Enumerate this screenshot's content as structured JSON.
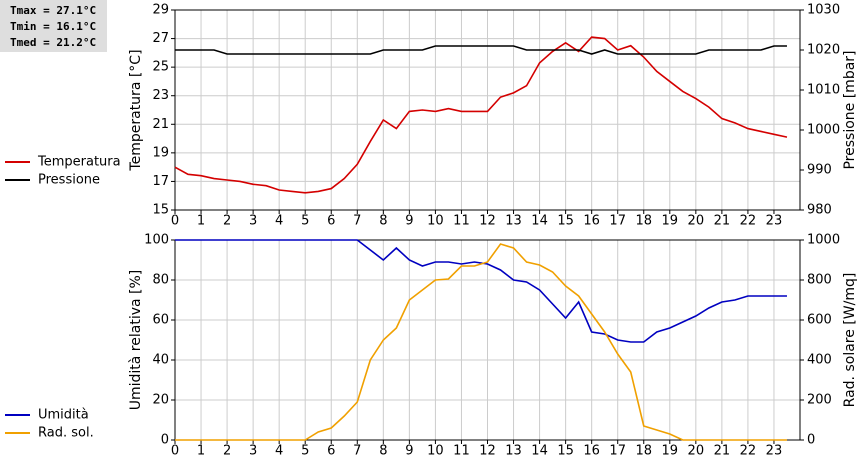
{
  "chart_data": [
    {
      "type": "line",
      "annotations": [
        "Tmax = 27.1°C",
        "Tmin = 16.1°C",
        "Tmed = 21.2°C"
      ],
      "ylabel": "Temperatura [°C]",
      "y2label": "Pressione [mbar]",
      "x": [
        0,
        0.5,
        1,
        1.5,
        2,
        2.5,
        3,
        3.5,
        4,
        4.5,
        5,
        5.5,
        6,
        6.5,
        7,
        7.5,
        8,
        8.5,
        9,
        9.5,
        10,
        10.5,
        11,
        11.5,
        12,
        12.5,
        13,
        13.5,
        14,
        14.5,
        15,
        15.5,
        16,
        16.5,
        17,
        17.5,
        18,
        18.5,
        19,
        19.5,
        20,
        20.5,
        21,
        21.5,
        22,
        22.5,
        23,
        23.5
      ],
      "xlim": [
        0,
        24
      ],
      "xticks": [
        0,
        1,
        2,
        3,
        4,
        5,
        6,
        7,
        8,
        9,
        10,
        11,
        12,
        13,
        14,
        15,
        16,
        17,
        18,
        19,
        20,
        21,
        22,
        23
      ],
      "ylim": [
        15,
        29
      ],
      "yticks": [
        15,
        17,
        19,
        21,
        23,
        25,
        27,
        29
      ],
      "y2lim": [
        980,
        1030
      ],
      "y2ticks": [
        980,
        990,
        1000,
        1010,
        1020,
        1030
      ],
      "grid": true,
      "legend": "left",
      "series": [
        {
          "name": "Temperatura",
          "color": "#d40000",
          "values": [
            18.0,
            17.5,
            17.4,
            17.2,
            17.1,
            17.0,
            16.8,
            16.7,
            16.4,
            16.3,
            16.2,
            16.3,
            16.5,
            17.2,
            18.2,
            19.8,
            21.3,
            20.7,
            21.9,
            22.0,
            21.9,
            22.1,
            21.9,
            21.9,
            21.9,
            22.9,
            23.2,
            23.7,
            25.3,
            26.1,
            26.7,
            26.1,
            27.1,
            27.0,
            26.2,
            26.5,
            25.7,
            24.7,
            24.0,
            23.3,
            22.8,
            22.2,
            21.4,
            21.1,
            20.7,
            20.5,
            20.3,
            20.1
          ]
        },
        {
          "name": "Pressione",
          "color": "#000000",
          "axis": "y2",
          "values": [
            1020,
            1020,
            1020,
            1020,
            1019,
            1019,
            1019,
            1019,
            1019,
            1019,
            1019,
            1019,
            1019,
            1019,
            1019,
            1019,
            1020,
            1020,
            1020,
            1020,
            1021,
            1021,
            1021,
            1021,
            1021,
            1021,
            1021,
            1020,
            1020,
            1020,
            1020,
            1020,
            1019,
            1020,
            1019,
            1019,
            1019,
            1019,
            1019,
            1019,
            1019,
            1020,
            1020,
            1020,
            1020,
            1020,
            1021,
            1021
          ]
        }
      ]
    },
    {
      "type": "line",
      "ylabel": "Umidità relativa [%]",
      "y2label": "Rad. solare [W/mq]",
      "x": [
        0,
        0.5,
        1,
        1.5,
        2,
        2.5,
        3,
        3.5,
        4,
        4.5,
        5,
        5.5,
        6,
        6.5,
        7,
        7.5,
        8,
        8.5,
        9,
        9.5,
        10,
        10.5,
        11,
        11.5,
        12,
        12.5,
        13,
        13.5,
        14,
        14.5,
        15,
        15.5,
        16,
        16.5,
        17,
        17.5,
        18,
        18.5,
        19,
        19.5,
        20,
        20.5,
        21,
        21.5,
        22,
        22.5,
        23,
        23.5
      ],
      "xlim": [
        0,
        24
      ],
      "xticks": [
        0,
        1,
        2,
        3,
        4,
        5,
        6,
        7,
        8,
        9,
        10,
        11,
        12,
        13,
        14,
        15,
        16,
        17,
        18,
        19,
        20,
        21,
        22,
        23
      ],
      "ylim": [
        0,
        100
      ],
      "yticks": [
        0,
        20,
        40,
        60,
        80,
        100
      ],
      "y2lim": [
        0,
        1000
      ],
      "y2ticks": [
        0,
        200,
        400,
        600,
        800,
        1000
      ],
      "grid": true,
      "legend": "left",
      "series": [
        {
          "name": "Umidità",
          "color": "#0000c0",
          "values": [
            100,
            100,
            100,
            100,
            100,
            100,
            100,
            100,
            100,
            100,
            100,
            100,
            100,
            100,
            100,
            95,
            90,
            96,
            90,
            87,
            89,
            89,
            88,
            89,
            88,
            85,
            80,
            79,
            75,
            68,
            61,
            69,
            54,
            53,
            50,
            49,
            49,
            54,
            56,
            59,
            62,
            66,
            69,
            70,
            72,
            72,
            72,
            72
          ]
        },
        {
          "name": "Rad. sol.",
          "color": "#f0a000",
          "axis": "y2",
          "values": [
            0,
            0,
            0,
            0,
            0,
            0,
            0,
            0,
            0,
            0,
            0,
            40,
            60,
            120,
            190,
            400,
            500,
            560,
            700,
            750,
            800,
            805,
            870,
            870,
            890,
            980,
            960,
            890,
            875,
            840,
            770,
            720,
            630,
            540,
            430,
            340,
            70,
            50,
            30,
            0,
            0,
            0,
            0,
            0,
            0,
            0,
            0,
            0
          ]
        }
      ]
    }
  ]
}
